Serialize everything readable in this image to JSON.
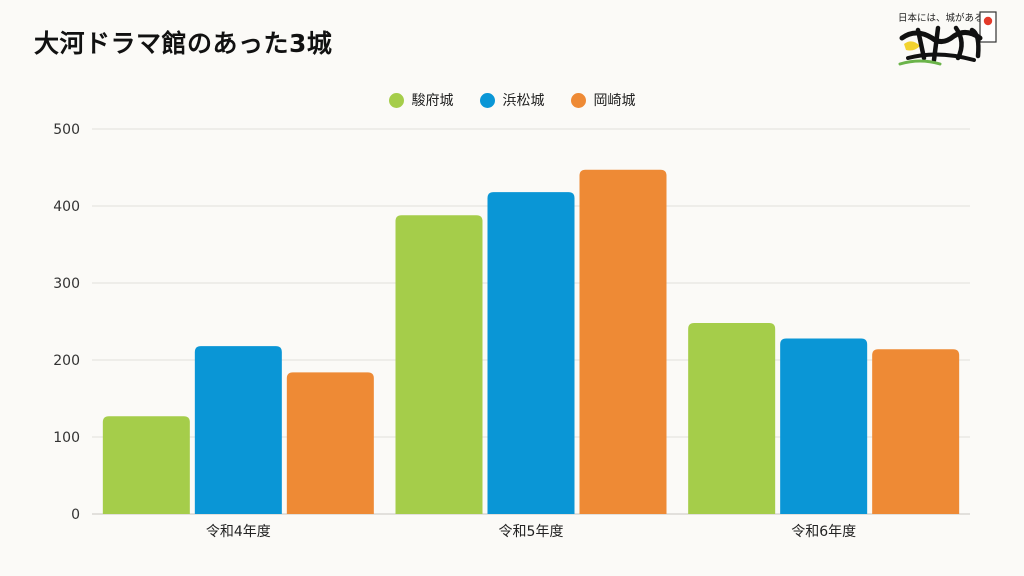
{
  "title": "大河ドラマ館のあった3城",
  "logo": {
    "tagline": "日本には、城がある。",
    "name": "攻城団",
    "icon": "castle-brand-logo"
  },
  "colors": {
    "background": "#fbfaf7",
    "grid": "#e2e0db",
    "axis": "#c9c7c2"
  },
  "chart_data": {
    "type": "bar",
    "title": "大河ドラマ館のあった3城",
    "categories": [
      "令和4年度",
      "令和5年度",
      "令和6年度"
    ],
    "series": [
      {
        "name": "駿府城",
        "color": "#a5cd4a",
        "values": [
          127,
          388,
          248
        ]
      },
      {
        "name": "浜松城",
        "color": "#0a96d6",
        "values": [
          218,
          418,
          228
        ]
      },
      {
        "name": "岡崎城",
        "color": "#ee8a35",
        "values": [
          184,
          447,
          214
        ]
      }
    ],
    "ylim": [
      0,
      500
    ],
    "yticks": [
      0,
      100,
      200,
      300,
      400,
      500
    ],
    "grid": true,
    "legend": "top-center",
    "xlabel": "",
    "ylabel": ""
  }
}
